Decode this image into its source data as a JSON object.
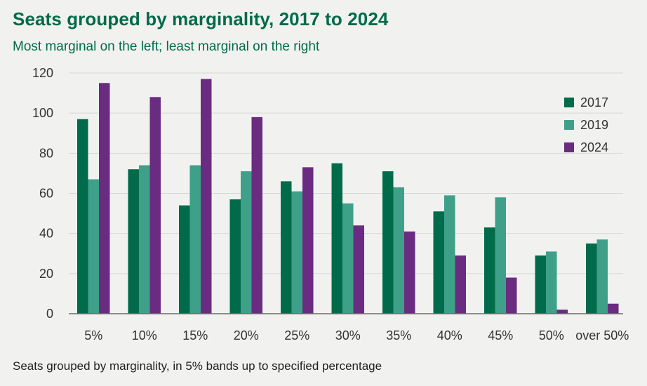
{
  "title": "Seats grouped by marginality, 2017 to 2024",
  "subtitle": "Most marginal on the left; least marginal on the right",
  "footnote": "Seats grouped by marginality, in 5% bands up to specified percentage",
  "colors": {
    "2017": "#006b4a",
    "2019": "#3fa08a",
    "2024": "#6a2c80",
    "grid": "#d6d6d6",
    "axis": "#6b6b6b"
  },
  "chart_data": {
    "type": "bar",
    "categories": [
      "5%",
      "10%",
      "15%",
      "20%",
      "25%",
      "30%",
      "35%",
      "40%",
      "45%",
      "50%",
      "over 50%"
    ],
    "series": [
      {
        "name": "2017",
        "values": [
          97,
          72,
          54,
          57,
          66,
          75,
          71,
          51,
          43,
          29,
          35
        ]
      },
      {
        "name": "2019",
        "values": [
          67,
          74,
          74,
          71,
          61,
          55,
          63,
          59,
          58,
          31,
          37
        ]
      },
      {
        "name": "2024",
        "values": [
          115,
          108,
          117,
          98,
          73,
          44,
          41,
          29,
          18,
          2,
          5
        ]
      }
    ],
    "ylim": [
      0,
      120
    ],
    "yticks": [
      0,
      20,
      40,
      60,
      80,
      100,
      120
    ],
    "grid": true,
    "legend_position": "top-right"
  }
}
